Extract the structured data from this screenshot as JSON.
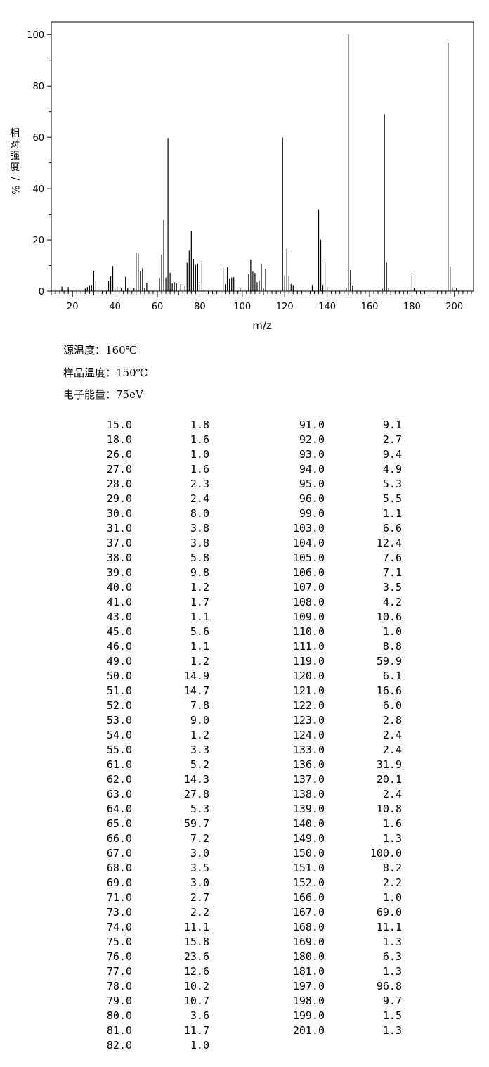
{
  "chart_data": {
    "type": "bar",
    "xlabel": "m/z",
    "ylabel": "相对强度/%",
    "xlim": [
      10,
      209
    ],
    "ylim": [
      0,
      105
    ],
    "xticks": [
      20,
      40,
      60,
      80,
      100,
      120,
      140,
      160,
      180,
      200
    ],
    "yticks": [
      0,
      20,
      40,
      60,
      80,
      100
    ],
    "peaks": [
      [
        15,
        1.8
      ],
      [
        18,
        1.6
      ],
      [
        26,
        1.0
      ],
      [
        27,
        1.6
      ],
      [
        28,
        2.3
      ],
      [
        29,
        2.4
      ],
      [
        30,
        8.0
      ],
      [
        31,
        3.8
      ],
      [
        37,
        3.8
      ],
      [
        38,
        5.8
      ],
      [
        39,
        9.8
      ],
      [
        40,
        1.2
      ],
      [
        41,
        1.7
      ],
      [
        43,
        1.1
      ],
      [
        45,
        5.6
      ],
      [
        46,
        1.1
      ],
      [
        49,
        1.2
      ],
      [
        50,
        14.9
      ],
      [
        51,
        14.7
      ],
      [
        52,
        7.8
      ],
      [
        53,
        9.0
      ],
      [
        54,
        1.2
      ],
      [
        55,
        3.3
      ],
      [
        61,
        5.2
      ],
      [
        62,
        14.3
      ],
      [
        63,
        27.8
      ],
      [
        64,
        5.3
      ],
      [
        65,
        59.7
      ],
      [
        66,
        7.2
      ],
      [
        67,
        3.0
      ],
      [
        68,
        3.5
      ],
      [
        69,
        3.0
      ],
      [
        71,
        2.7
      ],
      [
        73,
        2.2
      ],
      [
        74,
        11.1
      ],
      [
        75,
        15.8
      ],
      [
        76,
        23.6
      ],
      [
        77,
        12.6
      ],
      [
        78,
        10.2
      ],
      [
        79,
        10.7
      ],
      [
        80,
        3.6
      ],
      [
        81,
        11.7
      ],
      [
        82,
        1.0
      ],
      [
        91,
        9.1
      ],
      [
        92,
        2.7
      ],
      [
        93,
        9.4
      ],
      [
        94,
        4.9
      ],
      [
        95,
        5.3
      ],
      [
        96,
        5.5
      ],
      [
        99,
        1.1
      ],
      [
        103,
        6.6
      ],
      [
        104,
        12.4
      ],
      [
        105,
        7.6
      ],
      [
        106,
        7.1
      ],
      [
        107,
        3.5
      ],
      [
        108,
        4.2
      ],
      [
        109,
        10.6
      ],
      [
        110,
        1.0
      ],
      [
        111,
        8.8
      ],
      [
        119,
        59.9
      ],
      [
        120,
        6.1
      ],
      [
        121,
        16.6
      ],
      [
        122,
        6.0
      ],
      [
        123,
        2.8
      ],
      [
        124,
        2.4
      ],
      [
        133,
        2.4
      ],
      [
        136,
        31.9
      ],
      [
        137,
        20.1
      ],
      [
        138,
        2.4
      ],
      [
        139,
        10.8
      ],
      [
        140,
        1.6
      ],
      [
        149,
        1.3
      ],
      [
        150,
        100.0
      ],
      [
        151,
        8.2
      ],
      [
        152,
        2.2
      ],
      [
        166,
        1.0
      ],
      [
        167,
        69.0
      ],
      [
        168,
        11.1
      ],
      [
        169,
        1.3
      ],
      [
        180,
        6.3
      ],
      [
        181,
        1.3
      ],
      [
        197,
        96.8
      ],
      [
        198,
        9.7
      ],
      [
        199,
        1.5
      ],
      [
        201,
        1.3
      ]
    ]
  },
  "conditions": {
    "source_temp": "源温度：160℃",
    "sample_temp": "样品温度：150℃",
    "electron_energy": "电子能量：75eV"
  },
  "table": {
    "left": [
      [
        "15.0",
        "1.8"
      ],
      [
        "18.0",
        "1.6"
      ],
      [
        "26.0",
        "1.0"
      ],
      [
        "27.0",
        "1.6"
      ],
      [
        "28.0",
        "2.3"
      ],
      [
        "29.0",
        "2.4"
      ],
      [
        "30.0",
        "8.0"
      ],
      [
        "31.0",
        "3.8"
      ],
      [
        "37.0",
        "3.8"
      ],
      [
        "38.0",
        "5.8"
      ],
      [
        "39.0",
        "9.8"
      ],
      [
        "40.0",
        "1.2"
      ],
      [
        "41.0",
        "1.7"
      ],
      [
        "43.0",
        "1.1"
      ],
      [
        "45.0",
        "5.6"
      ],
      [
        "46.0",
        "1.1"
      ],
      [
        "49.0",
        "1.2"
      ],
      [
        "50.0",
        "14.9"
      ],
      [
        "51.0",
        "14.7"
      ],
      [
        "52.0",
        "7.8"
      ],
      [
        "53.0",
        "9.0"
      ],
      [
        "54.0",
        "1.2"
      ],
      [
        "55.0",
        "3.3"
      ],
      [
        "61.0",
        "5.2"
      ],
      [
        "62.0",
        "14.3"
      ],
      [
        "63.0",
        "27.8"
      ],
      [
        "64.0",
        "5.3"
      ],
      [
        "65.0",
        "59.7"
      ],
      [
        "66.0",
        "7.2"
      ],
      [
        "67.0",
        "3.0"
      ],
      [
        "68.0",
        "3.5"
      ],
      [
        "69.0",
        "3.0"
      ],
      [
        "71.0",
        "2.7"
      ],
      [
        "73.0",
        "2.2"
      ],
      [
        "74.0",
        "11.1"
      ],
      [
        "75.0",
        "15.8"
      ],
      [
        "76.0",
        "23.6"
      ],
      [
        "77.0",
        "12.6"
      ],
      [
        "78.0",
        "10.2"
      ],
      [
        "79.0",
        "10.7"
      ],
      [
        "80.0",
        "3.6"
      ],
      [
        "81.0",
        "11.7"
      ],
      [
        "82.0",
        "1.0"
      ]
    ],
    "right": [
      [
        "91.0",
        "9.1"
      ],
      [
        "92.0",
        "2.7"
      ],
      [
        "93.0",
        "9.4"
      ],
      [
        "94.0",
        "4.9"
      ],
      [
        "95.0",
        "5.3"
      ],
      [
        "96.0",
        "5.5"
      ],
      [
        "99.0",
        "1.1"
      ],
      [
        "103.0",
        "6.6"
      ],
      [
        "104.0",
        "12.4"
      ],
      [
        "105.0",
        "7.6"
      ],
      [
        "106.0",
        "7.1"
      ],
      [
        "107.0",
        "3.5"
      ],
      [
        "108.0",
        "4.2"
      ],
      [
        "109.0",
        "10.6"
      ],
      [
        "110.0",
        "1.0"
      ],
      [
        "111.0",
        "8.8"
      ],
      [
        "119.0",
        "59.9"
      ],
      [
        "120.0",
        "6.1"
      ],
      [
        "121.0",
        "16.6"
      ],
      [
        "122.0",
        "6.0"
      ],
      [
        "123.0",
        "2.8"
      ],
      [
        "124.0",
        "2.4"
      ],
      [
        "133.0",
        "2.4"
      ],
      [
        "136.0",
        "31.9"
      ],
      [
        "137.0",
        "20.1"
      ],
      [
        "138.0",
        "2.4"
      ],
      [
        "139.0",
        "10.8"
      ],
      [
        "140.0",
        "1.6"
      ],
      [
        "149.0",
        "1.3"
      ],
      [
        "150.0",
        "100.0"
      ],
      [
        "151.0",
        "8.2"
      ],
      [
        "152.0",
        "2.2"
      ],
      [
        "166.0",
        "1.0"
      ],
      [
        "167.0",
        "69.0"
      ],
      [
        "168.0",
        "11.1"
      ],
      [
        "169.0",
        "1.3"
      ],
      [
        "180.0",
        "6.3"
      ],
      [
        "181.0",
        "1.3"
      ],
      [
        "197.0",
        "96.8"
      ],
      [
        "198.0",
        "9.7"
      ],
      [
        "199.0",
        "1.5"
      ],
      [
        "201.0",
        "1.3"
      ]
    ]
  }
}
